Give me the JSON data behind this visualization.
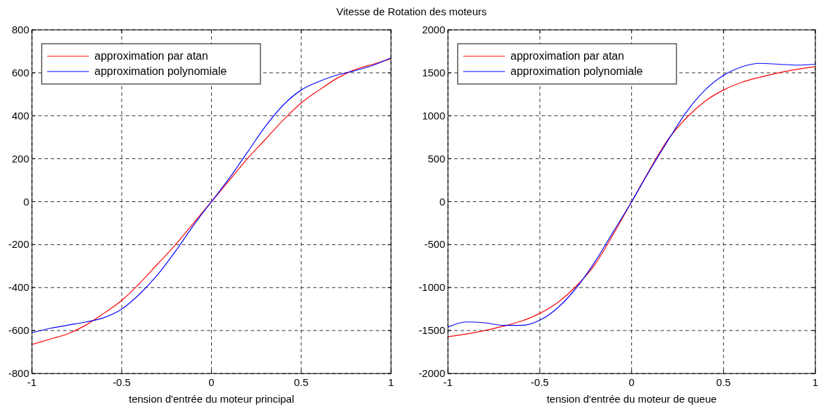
{
  "chart_data": [
    {
      "type": "line",
      "title": "Vitesse de Rotation des moteurs",
      "xlabel": "tension d'entrée du moteur principal",
      "x": [
        -1,
        -0.9,
        -0.8,
        -0.7,
        -0.6,
        -0.5,
        -0.4,
        -0.3,
        -0.2,
        -0.1,
        0,
        0.1,
        0.2,
        0.3,
        0.4,
        0.5,
        0.6,
        0.7,
        0.8,
        0.9,
        1
      ],
      "xlim": [
        -1,
        1
      ],
      "xticks": [
        -1,
        -0.5,
        0,
        0.5,
        1
      ],
      "ylim": [
        -800,
        800
      ],
      "yticks": [
        -800,
        -600,
        -400,
        -200,
        0,
        200,
        400,
        600,
        800
      ],
      "grid": true,
      "legend": "top left",
      "series": [
        {
          "name": "approximation par atan",
          "color": "#ff0000",
          "values": [
            -665,
            -640,
            -615,
            -575,
            -520,
            -460,
            -380,
            -290,
            -200,
            -100,
            0,
            100,
            200,
            290,
            380,
            460,
            520,
            575,
            615,
            640,
            665
          ]
        },
        {
          "name": "approximation polynomiale",
          "color": "#0000ff",
          "values": [
            -610,
            -590,
            -575,
            -560,
            -540,
            -500,
            -430,
            -340,
            -230,
            -110,
            0,
            110,
            230,
            350,
            450,
            520,
            560,
            590,
            610,
            635,
            670
          ]
        }
      ]
    },
    {
      "type": "line",
      "xlabel": "tension d'entrée du moteur de queue",
      "x": [
        -1,
        -0.9,
        -0.8,
        -0.7,
        -0.6,
        -0.5,
        -0.4,
        -0.3,
        -0.2,
        -0.1,
        0,
        0.1,
        0.2,
        0.3,
        0.4,
        0.5,
        0.6,
        0.7,
        0.8,
        0.9,
        1
      ],
      "xlim": [
        -1,
        1
      ],
      "xticks": [
        -1,
        -0.5,
        0,
        0.5,
        1
      ],
      "ylim": [
        -2000,
        2000
      ],
      "yticks": [
        -2000,
        -1500,
        -1000,
        -500,
        0,
        500,
        1000,
        1500,
        2000
      ],
      "grid": true,
      "legend": "top left",
      "series": [
        {
          "name": "approximation par atan",
          "color": "#ff0000",
          "values": [
            -1570,
            -1540,
            -1500,
            -1450,
            -1390,
            -1300,
            -1170,
            -980,
            -730,
            -380,
            0,
            380,
            730,
            980,
            1170,
            1300,
            1390,
            1450,
            1500,
            1540,
            1570
          ]
        },
        {
          "name": "approximation polynomiale",
          "color": "#0000ff",
          "values": [
            -1460,
            -1400,
            -1410,
            -1440,
            -1440,
            -1380,
            -1230,
            -1000,
            -700,
            -350,
            0,
            370,
            720,
            1050,
            1300,
            1470,
            1570,
            1610,
            1600,
            1590,
            1600
          ]
        }
      ]
    }
  ]
}
